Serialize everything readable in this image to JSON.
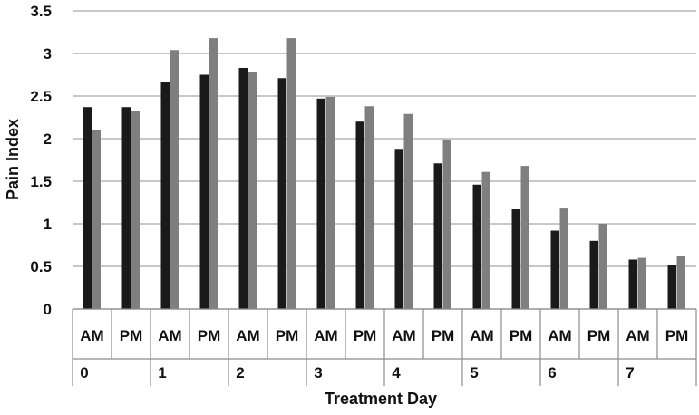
{
  "chart_data": {
    "type": "bar",
    "xlabel": "Treatment Day",
    "ylabel": "Pain Index",
    "ylim": [
      0,
      3.5
    ],
    "yticks": [
      "0",
      "0.5",
      "1",
      "1.5",
      "2",
      "2.5",
      "3",
      "3.5"
    ],
    "grid": true,
    "legend": "none",
    "categories": [
      "AM",
      "PM",
      "AM",
      "PM",
      "AM",
      "PM",
      "AM",
      "PM",
      "AM",
      "PM",
      "AM",
      "PM",
      "AM",
      "PM",
      "AM",
      "PM"
    ],
    "groups": [
      "0",
      "1",
      "2",
      "3",
      "4",
      "5",
      "6",
      "7"
    ],
    "series": [
      {
        "color": "#1a1a1a",
        "values": [
          2.37,
          2.37,
          2.66,
          2.75,
          2.83,
          2.71,
          2.47,
          2.2,
          1.88,
          1.71,
          1.46,
          1.17,
          0.92,
          0.8,
          0.58,
          0.52
        ]
      },
      {
        "color": "#7f7f7f",
        "values": [
          2.1,
          2.32,
          3.04,
          3.18,
          2.78,
          3.18,
          2.49,
          2.38,
          2.29,
          1.99,
          1.61,
          1.68,
          1.18,
          1.0,
          0.6,
          0.62
        ]
      }
    ]
  }
}
